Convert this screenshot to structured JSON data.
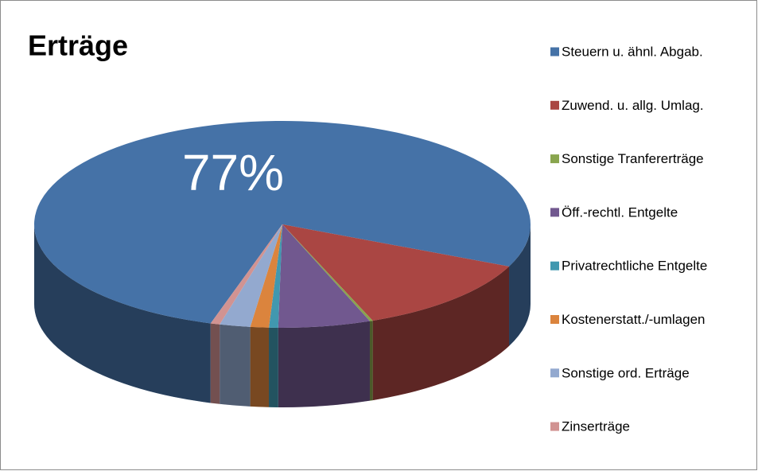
{
  "chart_data": {
    "type": "pie",
    "title": "Erträge",
    "categories": [
      "Steuern u. ähnl. Abgab.",
      "Zuwend. u. allg. Umlag.",
      "Sonstige Tranfererträge",
      "Öff.-rechtl. Entgelte",
      "Privatrechtliche Entgelte",
      "Kostenerstatt./-umlagen",
      "Sonstige ord. Erträge",
      "Zinserträge"
    ],
    "values": [
      77,
      12.4,
      0.2,
      6,
      0.6,
      1.2,
      2,
      0.6
    ],
    "value_labels": [
      "77%",
      null,
      null,
      null,
      null,
      null,
      null,
      null
    ],
    "colors": [
      "#4572a7",
      "#aa4643",
      "#89a54e",
      "#71588f",
      "#4198af",
      "#db843d",
      "#93a9cf",
      "#d19392"
    ],
    "legend": "right"
  }
}
